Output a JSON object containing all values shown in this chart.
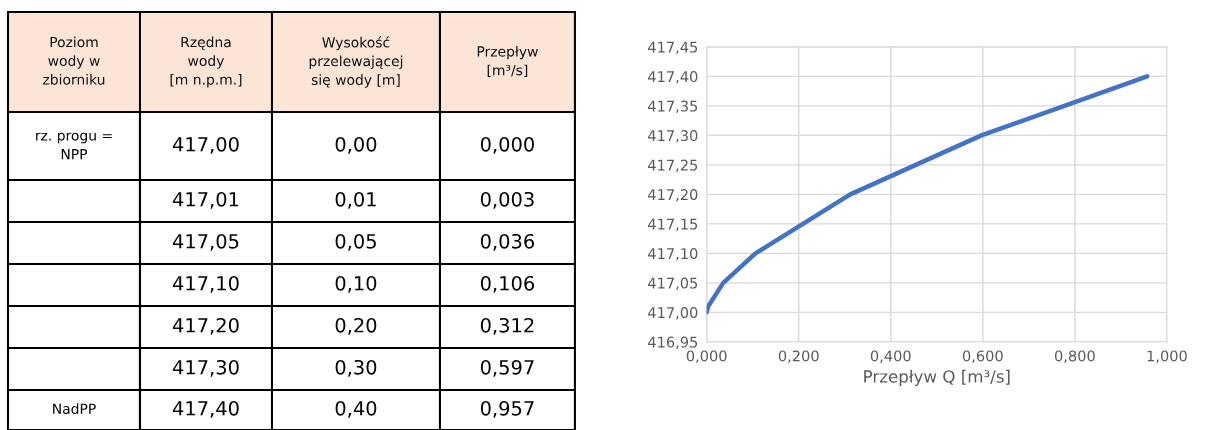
{
  "chart_data": [
    {
      "type": "heatmap",
      "ylabel": "Poziom\nwody w\nzbiorniku",
      "categories": [
        "Rzędna\nwody\n[m n.p.m.]",
        "Wysokość\nprzelewającej\nsię wody [m]",
        "Przepływ\n[m³/s]"
      ],
      "y_categories": [
        "rz. progu =\nNPP",
        null,
        null,
        null,
        null,
        null,
        "NadPP"
      ],
      "cells": [
        [
          417.0,
          0.0,
          0.0
        ],
        [
          417.01,
          0.01,
          0.003
        ],
        [
          417.05,
          0.05,
          0.036
        ],
        [
          417.1,
          0.1,
          0.106
        ],
        [
          417.2,
          0.2,
          0.312
        ],
        [
          417.3,
          0.3,
          0.597
        ],
        [
          417.4,
          0.4,
          0.957
        ]
      ],
      "cell_labels": [
        [
          "417,00",
          "0,00",
          "0,000"
        ],
        [
          "417,01",
          "0,01",
          "0,003"
        ],
        [
          "417,05",
          "0,05",
          "0,036"
        ],
        [
          "417,10",
          "0,10",
          "0,106"
        ],
        [
          "417,20",
          "0,20",
          "0,312"
        ],
        [
          "417,30",
          "0,30",
          "0,597"
        ],
        [
          "417,40",
          "0,40",
          "0,957"
        ]
      ]
    },
    {
      "type": "line",
      "xlabel": "Przepływ Q [m³/s]",
      "x": [
        0.0,
        0.003,
        0.036,
        0.106,
        0.312,
        0.597,
        0.957
      ],
      "series": [
        {
          "color": "#4472c4",
          "values": [
            417.0,
            417.01,
            417.05,
            417.1,
            417.2,
            417.3,
            417.4
          ]
        }
      ],
      "xlim": [
        0,
        1
      ],
      "xticks": [
        {
          "value": 0,
          "label": "0,000"
        },
        {
          "value": 0.2,
          "label": "0,200"
        },
        {
          "value": 0.4,
          "label": "0,400"
        },
        {
          "value": 0.6,
          "label": "0,600"
        },
        {
          "value": 0.8,
          "label": "0,800"
        },
        {
          "value": 1,
          "label": "1,000"
        }
      ],
      "ylim": [
        416.95,
        417.45
      ],
      "yticks": [
        {
          "value": 416.95,
          "label": "416,95"
        },
        {
          "value": 417.0,
          "label": "417,00"
        },
        {
          "value": 417.05,
          "label": "417,05"
        },
        {
          "value": 417.1,
          "label": "417,10"
        },
        {
          "value": 417.15,
          "label": "417,15"
        },
        {
          "value": 417.2,
          "label": "417,20"
        },
        {
          "value": 417.25,
          "label": "417,25"
        },
        {
          "value": 417.3,
          "label": "417,30"
        },
        {
          "value": 417.35,
          "label": "417,35"
        },
        {
          "value": 417.4,
          "label": "417,40"
        },
        {
          "value": 417.45,
          "label": "417,45"
        }
      ],
      "grid": true,
      "marker": "none",
      "line_style": "solid"
    }
  ]
}
